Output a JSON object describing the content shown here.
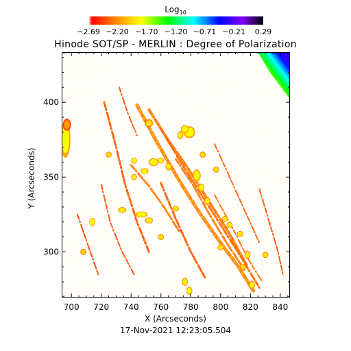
{
  "chart_data": {
    "type": "heatmap",
    "title": "Hinode SOT/SP - MERLIN : Degree of Polarization",
    "subtitle": "17-Nov-2021 12:23:05.504",
    "xlabel": "X (Arcseconds)",
    "ylabel": "Y (Arcseconds)",
    "xlim": [
      693.5,
      846.5
    ],
    "ylim": [
      269.5,
      433.5
    ],
    "x_ticks": [
      700,
      720,
      740,
      760,
      780,
      800,
      820,
      840
    ],
    "x_tick_labels": [
      "700",
      "720",
      "740",
      "760",
      "780",
      "800",
      "820",
      "840"
    ],
    "y_ticks": [
      300,
      350,
      400
    ],
    "y_tick_labels": [
      "300",
      "350",
      "400"
    ],
    "grid": false,
    "colorbar": {
      "label_prefix": "Log",
      "label_subscript": "10",
      "range": [
        -2.69,
        0.29
      ],
      "tick_values": [
        -2.69,
        -2.2,
        -1.7,
        -1.2,
        -0.71,
        -0.21,
        0.29
      ],
      "tick_labels": [
        "−2.69",
        "−2.20",
        "−1.70",
        "−1.20",
        "−0.71",
        "−0.21",
        "0.29"
      ],
      "colors": [
        "#ffffff",
        "#ff0000",
        "#ff8000",
        "#ffff00",
        "#00ff00",
        "#00ffff",
        "#0000ff",
        "#8000ff",
        "#000000"
      ],
      "color_stops": [
        0,
        0.02,
        0.15,
        0.3,
        0.45,
        0.6,
        0.75,
        0.88,
        1
      ]
    },
    "background_value": -2.69,
    "features": [
      {
        "kind": "strand",
        "points": [
          [
            744,
            398
          ],
          [
            758,
            372
          ],
          [
            772,
            348
          ],
          [
            786,
            326
          ],
          [
            800,
            306
          ],
          [
            812,
            290
          ],
          [
            822,
            274
          ]
        ],
        "width": 5,
        "value": -2.25
      },
      {
        "kind": "strand",
        "points": [
          [
            752,
            395
          ],
          [
            764,
            376
          ],
          [
            778,
            356
          ],
          [
            792,
            334
          ],
          [
            806,
            312
          ],
          [
            818,
            290
          ]
        ],
        "width": 4,
        "value": -2.3
      },
      {
        "kind": "strand",
        "points": [
          [
            760,
            382
          ],
          [
            772,
            362
          ],
          [
            786,
            340
          ],
          [
            800,
            318
          ],
          [
            814,
            296
          ],
          [
            826,
            276
          ]
        ],
        "width": 3,
        "value": -2.35
      },
      {
        "kind": "strand",
        "points": [
          [
            722,
            400
          ],
          [
            730,
            370
          ],
          [
            736,
            345
          ],
          [
            744,
            320
          ],
          [
            752,
            300
          ]
        ],
        "width": 3,
        "value": -2.4
      },
      {
        "kind": "strand",
        "points": [
          [
            770,
            362
          ],
          [
            782,
            344
          ],
          [
            792,
            326
          ],
          [
            804,
            306
          ],
          [
            816,
            288
          ]
        ],
        "width": 3,
        "value": -2.3
      },
      {
        "kind": "strand",
        "points": [
          [
            796,
            372
          ],
          [
            806,
            350
          ],
          [
            816,
            328
          ],
          [
            826,
            306
          ]
        ],
        "width": 2,
        "value": -2.4
      },
      {
        "kind": "strand",
        "points": [
          [
            720,
            345
          ],
          [
            726,
            320
          ],
          [
            734,
            300
          ],
          [
            742,
            285
          ]
        ],
        "width": 2,
        "value": -2.45
      },
      {
        "kind": "strand",
        "points": [
          [
            760,
            346
          ],
          [
            770,
            322
          ],
          [
            780,
            300
          ],
          [
            790,
            282
          ]
        ],
        "width": 3,
        "value": -2.4
      },
      {
        "kind": "strand",
        "points": [
          [
            740,
            358
          ],
          [
            752,
            344
          ],
          [
            762,
            330
          ],
          [
            772,
            314
          ]
        ],
        "width": 3,
        "value": -2.3
      },
      {
        "kind": "strand",
        "points": [
          [
            796,
            338
          ],
          [
            808,
            316
          ],
          [
            818,
            296
          ],
          [
            828,
            280
          ]
        ],
        "width": 2,
        "value": -2.35
      },
      {
        "kind": "strand",
        "points": [
          [
            826,
            342
          ],
          [
            832,
            322
          ],
          [
            838,
            302
          ],
          [
            842,
            284
          ]
        ],
        "width": 2,
        "value": -2.45
      },
      {
        "kind": "strand",
        "points": [
          [
            704,
            325
          ],
          [
            712,
            302
          ],
          [
            718,
            285
          ]
        ],
        "width": 2,
        "value": -2.5
      },
      {
        "kind": "strand",
        "points": [
          [
            732,
            410
          ],
          [
            738,
            392
          ],
          [
            744,
            378
          ]
        ],
        "width": 2,
        "value": -2.45
      },
      {
        "kind": "blob",
        "x": 696,
        "y": 375,
        "rx": 2.5,
        "ry": 9,
        "value": -1.78
      },
      {
        "kind": "blob",
        "x": 697,
        "y": 385,
        "rx": 2,
        "ry": 3,
        "value": -2.15
      },
      {
        "kind": "blob",
        "x": 779,
        "y": 380,
        "rx": 3,
        "ry": 3,
        "value": -1.78
      },
      {
        "kind": "blob",
        "x": 776,
        "y": 382,
        "rx": 2,
        "ry": 2,
        "value": -1.78
      },
      {
        "kind": "blob",
        "x": 773,
        "y": 378,
        "rx": 1.5,
        "ry": 2,
        "value": -1.85
      },
      {
        "kind": "blob",
        "x": 755,
        "y": 360,
        "rx": 2.5,
        "ry": 2,
        "value": -1.78
      },
      {
        "kind": "blob",
        "x": 760,
        "y": 361,
        "rx": 1.5,
        "ry": 1.5,
        "value": -1.8
      },
      {
        "kind": "blob",
        "x": 749,
        "y": 354,
        "rx": 2,
        "ry": 1.5,
        "value": -1.8
      },
      {
        "kind": "blob",
        "x": 765,
        "y": 357,
        "rx": 1.5,
        "ry": 2,
        "value": -1.85
      },
      {
        "kind": "blob",
        "x": 742,
        "y": 361,
        "rx": 1.5,
        "ry": 1.5,
        "value": -1.8
      },
      {
        "kind": "blob",
        "x": 742,
        "y": 350,
        "rx": 1.5,
        "ry": 1.5,
        "value": -1.85
      },
      {
        "kind": "blob",
        "x": 752,
        "y": 386,
        "rx": 2,
        "ry": 2,
        "value": -1.9
      },
      {
        "kind": "blob",
        "x": 784,
        "y": 351,
        "rx": 2,
        "ry": 3,
        "value": -1.78
      },
      {
        "kind": "blob",
        "x": 787,
        "y": 343,
        "rx": 1.5,
        "ry": 2,
        "value": -1.8
      },
      {
        "kind": "blob",
        "x": 791,
        "y": 334,
        "rx": 1.5,
        "ry": 2,
        "value": -1.85
      },
      {
        "kind": "blob",
        "x": 747,
        "y": 325,
        "rx": 3,
        "ry": 1.5,
        "value": -1.78
      },
      {
        "kind": "blob",
        "x": 752,
        "y": 321,
        "rx": 2,
        "ry": 1.5,
        "value": -1.85
      },
      {
        "kind": "blob",
        "x": 734,
        "y": 328,
        "rx": 2,
        "ry": 1.5,
        "value": -1.85
      },
      {
        "kind": "blob",
        "x": 714,
        "y": 320,
        "rx": 1.5,
        "ry": 2,
        "value": -1.8
      },
      {
        "kind": "blob",
        "x": 770,
        "y": 329,
        "rx": 1.5,
        "ry": 1.5,
        "value": -1.85
      },
      {
        "kind": "blob",
        "x": 803,
        "y": 322,
        "rx": 1.5,
        "ry": 1.5,
        "value": -1.85
      },
      {
        "kind": "blob",
        "x": 806,
        "y": 318,
        "rx": 1.5,
        "ry": 1.5,
        "value": -1.85
      },
      {
        "kind": "blob",
        "x": 813,
        "y": 312,
        "rx": 1.5,
        "ry": 1.5,
        "value": -1.85
      },
      {
        "kind": "blob",
        "x": 818,
        "y": 298,
        "rx": 1.5,
        "ry": 2,
        "value": -1.85
      },
      {
        "kind": "blob",
        "x": 815,
        "y": 290,
        "rx": 1.5,
        "ry": 1.5,
        "value": -1.9
      },
      {
        "kind": "blob",
        "x": 821,
        "y": 278,
        "rx": 1.5,
        "ry": 2,
        "value": -1.85
      },
      {
        "kind": "blob",
        "x": 800,
        "y": 303,
        "rx": 1.5,
        "ry": 1.5,
        "value": -1.85
      },
      {
        "kind": "blob",
        "x": 776,
        "y": 280,
        "rx": 1.5,
        "ry": 2,
        "value": -1.85
      },
      {
        "kind": "blob",
        "x": 779,
        "y": 274,
        "rx": 1.5,
        "ry": 2,
        "value": -1.8
      },
      {
        "kind": "blob",
        "x": 725,
        "y": 365,
        "rx": 1.5,
        "ry": 1.5,
        "value": -1.9
      },
      {
        "kind": "blob",
        "x": 788,
        "y": 365,
        "rx": 1.5,
        "ry": 1.5,
        "value": -1.9
      },
      {
        "kind": "blob",
        "x": 797,
        "y": 355,
        "rx": 1.5,
        "ry": 1.5,
        "value": -1.9
      },
      {
        "kind": "blob",
        "x": 830,
        "y": 298,
        "rx": 1.5,
        "ry": 1.5,
        "value": -1.9
      },
      {
        "kind": "blob",
        "x": 708,
        "y": 300,
        "rx": 1.5,
        "ry": 1.5,
        "value": -1.95
      },
      {
        "kind": "blob",
        "x": 760,
        "y": 310,
        "rx": 1.5,
        "ry": 1.5,
        "value": -1.9
      }
    ],
    "limb_region": {
      "side": "outer",
      "edge": [
        [
          825,
          433.5
        ],
        [
          833,
          420
        ],
        [
          846.5,
          402
        ]
      ],
      "value_range_across": [
        -1.5,
        -0.3
      ],
      "band_width_arcsec": 14
    }
  }
}
